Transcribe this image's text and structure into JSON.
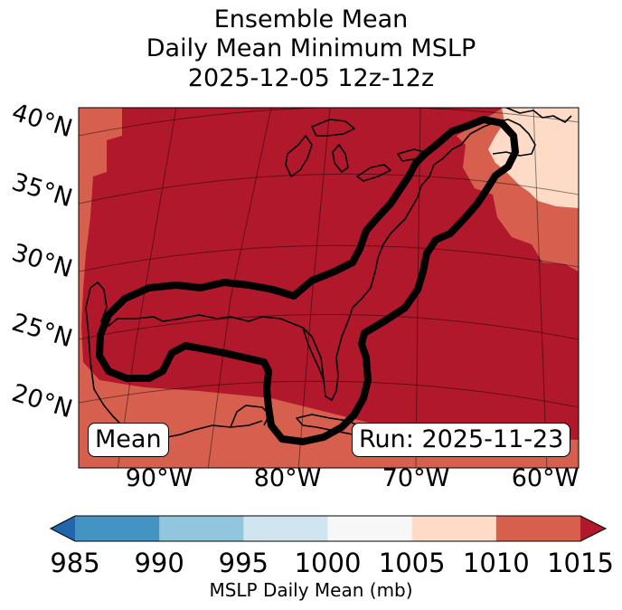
{
  "title": {
    "line1": "Ensemble Mean",
    "line2": "Daily Mean Minimum MSLP",
    "line3": "2025-12-05 12z-12z"
  },
  "map": {
    "lat_labels": [
      "40°N",
      "35°N",
      "30°N",
      "25°N",
      "20°N"
    ],
    "lon_labels": [
      "90°W",
      "80°W",
      "70°W",
      "60°W"
    ],
    "mean_label": "Mean",
    "run_label": "Run: 2025-11-23",
    "fill_colors": {
      "b1010": "#d6604d",
      "b1005": "#fddbc7",
      "b1015": "#b2182b"
    }
  },
  "colorbar": {
    "label": "MSLP Daily Mean (mb)",
    "ticks": [
      "985",
      "990",
      "995",
      "1000",
      "1005",
      "1010",
      "1015"
    ],
    "colors": [
      "#2166ac",
      "#4393c3",
      "#92c5de",
      "#d1e5f0",
      "#f7f7f7",
      "#fddbc7",
      "#d6604d",
      "#b2182b"
    ]
  }
}
